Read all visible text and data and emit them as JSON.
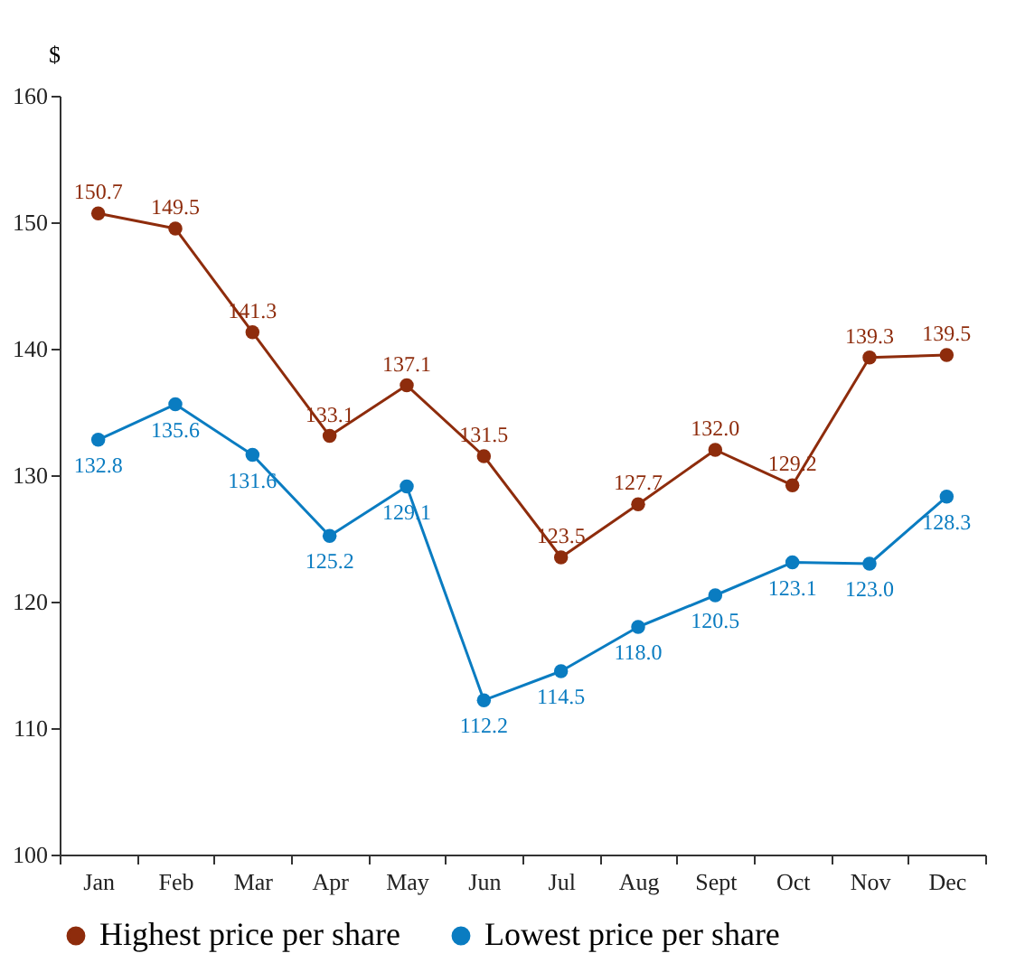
{
  "chart_data": {
    "type": "line",
    "ylabel": "$",
    "categories": [
      "Jan",
      "Feb",
      "Mar",
      "Apr",
      "May",
      "Jun",
      "Jul",
      "Aug",
      "Sept",
      "Oct",
      "Nov",
      "Dec"
    ],
    "series": [
      {
        "name": "Highest price per share",
        "color": "#8e2c0c",
        "values": [
          150.7,
          149.5,
          141.3,
          133.1,
          137.1,
          131.5,
          123.5,
          127.7,
          132.0,
          129.2,
          139.3,
          139.5
        ],
        "value_labels": [
          "150.7",
          "149.5",
          "141.3",
          "133.1",
          "137.1",
          "131.5",
          "123.5",
          "127.7",
          "132.0",
          "129.2",
          "139.3",
          "139.5"
        ]
      },
      {
        "name": "Lowest price per share",
        "color": "#0a7cc1",
        "values": [
          132.8,
          135.6,
          131.6,
          125.2,
          129.1,
          112.2,
          114.5,
          118.0,
          120.5,
          123.1,
          123.0,
          128.3
        ],
        "value_labels": [
          "132.8",
          "135.6",
          "131.6",
          "125.2",
          "129.1",
          "112.2",
          "114.5",
          "118.0",
          "120.5",
          "123.1",
          "123.0",
          "128.3"
        ]
      }
    ],
    "ylim": [
      100,
      160
    ],
    "yticks": [
      100,
      110,
      120,
      130,
      140,
      150,
      160
    ],
    "legend": "bottom",
    "marker": "circle",
    "line_style": "solid"
  }
}
